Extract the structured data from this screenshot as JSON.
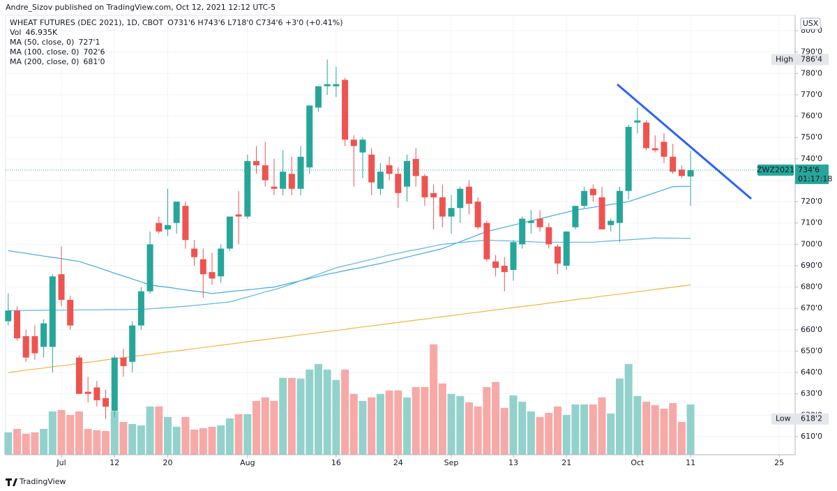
{
  "header": {
    "published": "Andre_Sizov published on TradingView.com, Oct 12, 2021 12:12 UTC-5"
  },
  "chart_data": {
    "type": "candlestick",
    "ohlc_label": "O731'6 H743'6 L718'0 C734'6 +3'0 (+0.41%)",
    "currency": "USX",
    "grid": true,
    "xlim": [
      -0.3,
      88.8
    ],
    "xticks": [
      {
        "value": 6,
        "label": "Jul"
      },
      {
        "value": 12,
        "label": "12"
      },
      {
        "value": 18,
        "label": "20"
      },
      {
        "value": 27,
        "label": "Aug"
      },
      {
        "value": 37,
        "label": "16"
      },
      {
        "value": 44,
        "label": "24"
      },
      {
        "value": 50,
        "label": "Sep"
      },
      {
        "value": 57,
        "label": "13"
      },
      {
        "value": 63,
        "label": "21"
      },
      {
        "value": 71,
        "label": "Oct"
      },
      {
        "value": 77,
        "label": "11"
      },
      {
        "value": 87,
        "label": "25"
      }
    ],
    "ylim": [
      601.5,
      807.2
    ],
    "yticks": [
      {
        "value": 610,
        "label": "610'0"
      },
      {
        "value": 620,
        "label": "620'0"
      },
      {
        "value": 630,
        "label": "630'0"
      },
      {
        "value": 640,
        "label": "640'0"
      },
      {
        "value": 650,
        "label": "650'0"
      },
      {
        "value": 660,
        "label": "660'0"
      },
      {
        "value": 670,
        "label": "670'0"
      },
      {
        "value": 680,
        "label": "680'0"
      },
      {
        "value": 690,
        "label": "690'0"
      },
      {
        "value": 700,
        "label": "700'0"
      },
      {
        "value": 710,
        "label": "710'0"
      },
      {
        "value": 720,
        "label": "720'0"
      },
      {
        "value": 730,
        "label": "730'0"
      },
      {
        "value": 740,
        "label": "740'0"
      },
      {
        "value": 750,
        "label": "750'0"
      },
      {
        "value": 760,
        "label": "760'0"
      },
      {
        "value": 770,
        "label": "770'0"
      },
      {
        "value": 780,
        "label": "780'0"
      },
      {
        "value": 790,
        "label": "790'0"
      },
      {
        "value": 800,
        "label": "800'0"
      }
    ],
    "y2lim": [
      0,
      410
    ],
    "series": [
      {
        "type": "candlestick",
        "name": "WHEAT FUTURES (DEC 2021), 1D, CBOT",
        "up_color": "#26a69a",
        "down_color": "#ef5350",
        "open": [
          664,
          669,
          657,
          657,
          652,
          652,
          686,
          674,
          647,
          631,
          633,
          628,
          622,
          647,
          645,
          662,
          678,
          710,
          707,
          710,
          718,
          698,
          693,
          687,
          685,
          698,
          714,
          713,
          739,
          737,
          727,
          726,
          733,
          726,
          736,
          764,
          774,
          774,
          777,
          749,
          743,
          742,
          726,
          737,
          733,
          727,
          740,
          732,
          724,
          722,
          713,
          717,
          727,
          720,
          710,
          692,
          690,
          688,
          700,
          710,
          712,
          708,
          699,
          690,
          708,
          718,
          726,
          722,
          709,
          710,
          725,
          757,
          757,
          745,
          748,
          741,
          735,
          731.75
        ],
        "high": [
          677,
          671,
          660,
          662,
          665,
          686,
          699,
          676,
          648,
          638,
          636,
          632,
          648,
          651,
          664,
          680,
          706,
          713,
          726,
          720,
          720,
          702,
          698,
          696,
          700,
          713,
          725,
          742,
          746,
          748,
          740,
          744,
          741,
          746,
          765,
          774,
          786.5,
          783,
          778,
          751,
          750,
          745,
          738,
          741,
          736,
          742,
          745,
          733,
          728,
          728,
          723,
          727,
          730,
          722,
          711,
          695,
          694,
          702,
          713,
          716,
          716,
          710,
          700,
          706,
          718,
          727,
          728,
          727,
          712,
          727,
          756,
          764,
          758,
          751,
          752,
          747,
          737,
          743.75
        ],
        "low": [
          662,
          655,
          645,
          646,
          647,
          640,
          671,
          660,
          630,
          626,
          624,
          618.25,
          619,
          638,
          640,
          660,
          677,
          705,
          704,
          705,
          698,
          690,
          675,
          681,
          682,
          697,
          700,
          712,
          733,
          727,
          723,
          723,
          723,
          723,
          733,
          762,
          770,
          769,
          746,
          727,
          731,
          723,
          723,
          730,
          717,
          720,
          727,
          718,
          707,
          708,
          705,
          710,
          714,
          707,
          692,
          685,
          678,
          683,
          698,
          705,
          706,
          698,
          686,
          688,
          707,
          717,
          720,
          707,
          706,
          701,
          721,
          752,
          744,
          743,
          738,
          733,
          731,
          718
        ],
        "close": [
          669,
          656,
          647,
          649,
          663,
          685,
          674,
          662,
          630,
          630,
          627,
          624,
          647,
          643,
          662,
          678,
          700,
          706,
          709,
          720,
          702,
          694,
          686,
          684,
          698,
          713,
          713,
          739,
          737,
          730,
          726,
          734,
          726,
          741,
          765,
          774,
          775,
          775,
          749,
          746,
          749,
          729,
          734,
          733,
          724,
          739,
          732,
          722,
          722,
          713,
          717,
          726,
          719,
          708,
          693,
          689,
          687,
          701,
          712,
          711,
          708,
          700,
          691,
          706,
          718,
          725,
          723,
          707,
          711,
          725,
          755,
          758,
          745,
          744,
          741,
          734,
          732,
          734.75
        ]
      },
      {
        "type": "volume",
        "name": "Vol",
        "axis": "y2",
        "legend_value": "46.935K",
        "up_color": "#93d2cc",
        "down_color": "#f7a9a7",
        "legend_color": "#26a69a",
        "values": [
          20.9,
          24.1,
          19.6,
          20.9,
          24.1,
          40.4,
          41.7,
          37.2,
          40.4,
          24.1,
          22.8,
          22.2,
          40.4,
          30.6,
          28.7,
          27.4,
          45,
          45,
          35.2,
          26.1,
          35.2,
          23.5,
          24.8,
          26.1,
          27.4,
          33.9,
          37.8,
          37.8,
          50.2,
          53.5,
          50.2,
          71.7,
          71.7,
          71.1,
          79.5,
          84.7,
          79.5,
          69.8,
          79.5,
          56.7,
          50.2,
          53.5,
          56.7,
          60,
          60,
          53.5,
          63.2,
          63.2,
          103,
          66.5,
          56.7,
          54.8,
          48.9,
          45,
          63.2,
          67.8,
          43.7,
          55.4,
          49.5,
          40.4,
          35.2,
          39.1,
          45,
          37.2,
          46.9,
          46.9,
          46.9,
          53.5,
          38.5,
          71.1,
          84.7,
          54.8,
          49.5,
          46.3,
          43,
          48.2,
          30.6,
          46.935
        ]
      },
      {
        "type": "line",
        "name": "MA (50, close, 0)",
        "legend_value": "727'1",
        "color": "#3fa7e6",
        "values": [
          697,
          696.4,
          695.8,
          695.1,
          694.5,
          693.9,
          693.3,
          692.6,
          692,
          690.6,
          689.3,
          687.9,
          686.5,
          685.1,
          683.8,
          682.4,
          681,
          680.4,
          679.9,
          679.3,
          678.7,
          678.1,
          677.6,
          677,
          677.4,
          677.9,
          678.3,
          678.7,
          679.1,
          679.6,
          680,
          681,
          682,
          683,
          684,
          685,
          686,
          686.8,
          687.7,
          688.5,
          689.3,
          690.2,
          691,
          692,
          693,
          694,
          695,
          696,
          697,
          698,
          699.6,
          701.2,
          702.8,
          704.4,
          706,
          707,
          708,
          709,
          710,
          711,
          712,
          713,
          714,
          715,
          716,
          716.7,
          717.3,
          718,
          718.7,
          719.3,
          720,
          721.4,
          722.8,
          724.2,
          725.6,
          727,
          727.1,
          727.125
        ]
      },
      {
        "type": "line",
        "name": "MA (100, close, 0)",
        "legend_value": "702'6",
        "color": "#5eb5dd",
        "values": [
          669,
          669,
          669.1,
          669.1,
          669.1,
          669.2,
          669.2,
          669.2,
          669.3,
          669.3,
          669.3,
          669.4,
          669.4,
          669.4,
          669.5,
          669.5,
          669.8,
          670.1,
          670.4,
          670.7,
          671,
          671.4,
          671.8,
          672.2,
          672.6,
          673,
          674.2,
          675.3,
          676.5,
          677.7,
          678.8,
          680,
          681.5,
          683,
          684.5,
          686,
          687.5,
          689,
          690,
          691,
          692,
          693,
          694,
          695,
          695.8,
          696.7,
          697.5,
          698.3,
          699.2,
          700,
          700.4,
          700.8,
          701.2,
          701.6,
          702,
          701.8,
          701.7,
          701.5,
          701.3,
          701.2,
          701,
          701,
          701,
          701,
          701,
          701,
          701,
          701.3,
          701.6,
          701.9,
          702.1,
          702.4,
          702.7,
          703,
          702.9,
          702.9,
          702.8,
          702.75
        ]
      },
      {
        "type": "line",
        "name": "MA (200, close, 0)",
        "legend_value": "681'0",
        "color": "#f5b43c",
        "values": [
          640,
          640.5,
          641.1,
          641.6,
          642.1,
          642.7,
          643.2,
          643.7,
          644.3,
          644.8,
          645.3,
          645.9,
          646.4,
          646.9,
          647.5,
          648,
          648.5,
          649.1,
          649.6,
          650.1,
          650.6,
          651.2,
          651.7,
          652.2,
          652.8,
          653.3,
          653.8,
          654.4,
          654.9,
          655.4,
          656,
          656.5,
          657,
          657.6,
          658.1,
          658.6,
          659.2,
          659.7,
          660.2,
          660.8,
          661.3,
          661.8,
          662.4,
          662.9,
          663.4,
          664,
          664.5,
          665,
          665.6,
          666.1,
          666.6,
          667.2,
          667.7,
          668.2,
          668.8,
          669.3,
          669.8,
          670.4,
          670.9,
          671.4,
          671.9,
          672.5,
          673,
          673.5,
          674.1,
          674.6,
          675.1,
          675.7,
          676.2,
          676.7,
          677.3,
          677.8,
          678.3,
          678.9,
          679.4,
          679.9,
          680.5,
          681
        ]
      }
    ],
    "high": {
      "name": "High",
      "value": 786.5,
      "label": "786'4"
    },
    "low": {
      "name": "Low",
      "value": 618.25,
      "label": "618'2"
    },
    "last_price": {
      "symbol": "ZWZ2021",
      "value": 734.75,
      "label": "734'6",
      "countdown": "01:17:18"
    }
  },
  "footer": {
    "brand": "TradingView"
  }
}
